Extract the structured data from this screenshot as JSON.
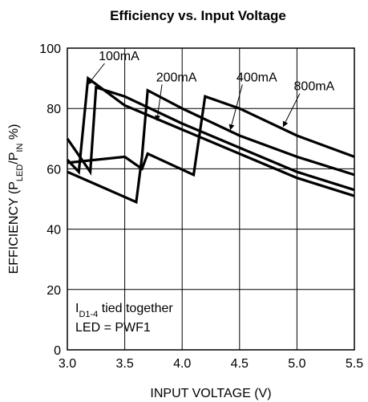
{
  "chart_data": {
    "type": "line",
    "title": "Efficiency vs. Input Voltage",
    "xlabel": "INPUT VOLTAGE (V)",
    "ylabel": {
      "main": "EFFICIENCY (P",
      "sub1": "LED",
      "mid": "/P",
      "sub2": "IN",
      "end": " %)"
    },
    "xlim": [
      3.0,
      5.5
    ],
    "ylim": [
      0,
      100
    ],
    "xticks": [
      "3.0",
      "3.5",
      "4.0",
      "4.5",
      "5.0",
      "5.5"
    ],
    "yticks": [
      "0",
      "20",
      "40",
      "60",
      "80",
      "100"
    ],
    "grid": true,
    "series": [
      {
        "name": "100mA",
        "points": [
          [
            3.0,
            63
          ],
          [
            3.1,
            59
          ],
          [
            3.18,
            90
          ],
          [
            3.5,
            81
          ],
          [
            4.0,
            73
          ],
          [
            4.5,
            65
          ],
          [
            5.0,
            57
          ],
          [
            5.5,
            51
          ]
        ]
      },
      {
        "name": "200mA",
        "points": [
          [
            3.0,
            70
          ],
          [
            3.2,
            59
          ],
          [
            3.25,
            87
          ],
          [
            3.5,
            84
          ],
          [
            4.0,
            75
          ],
          [
            4.5,
            67
          ],
          [
            5.0,
            59
          ],
          [
            5.5,
            53
          ]
        ]
      },
      {
        "name": "400mA",
        "points": [
          [
            3.0,
            59
          ],
          [
            3.3,
            54
          ],
          [
            3.6,
            49
          ],
          [
            3.65,
            64
          ],
          [
            3.7,
            86
          ],
          [
            4.0,
            80
          ],
          [
            4.5,
            71
          ],
          [
            5.0,
            64
          ],
          [
            5.5,
            58
          ]
        ]
      },
      {
        "name": "800mA",
        "points": [
          [
            3.0,
            62
          ],
          [
            3.5,
            64
          ],
          [
            3.65,
            60
          ],
          [
            3.7,
            65
          ],
          [
            4.1,
            58
          ],
          [
            4.2,
            84
          ],
          [
            4.5,
            80
          ],
          [
            5.0,
            71
          ],
          [
            5.5,
            64
          ]
        ]
      }
    ],
    "series_labels": [
      {
        "text": "100mA",
        "at": [
          3.45,
          96
        ],
        "arrow_to": [
          3.18,
          88
        ]
      },
      {
        "text": "200mA",
        "at": [
          3.95,
          89
        ],
        "arrow_to": [
          3.78,
          76
        ]
      },
      {
        "text": "400mA",
        "at": [
          4.65,
          89
        ],
        "arrow_to": [
          4.42,
          73
        ]
      },
      {
        "text": "800mA",
        "at": [
          5.15,
          86
        ],
        "arrow_to": [
          4.88,
          74
        ]
      }
    ],
    "annotation": {
      "line1_main": "I",
      "line1_sub": "D1-4",
      "line1_rest": " tied together",
      "line2": "LED = PWF1"
    }
  }
}
